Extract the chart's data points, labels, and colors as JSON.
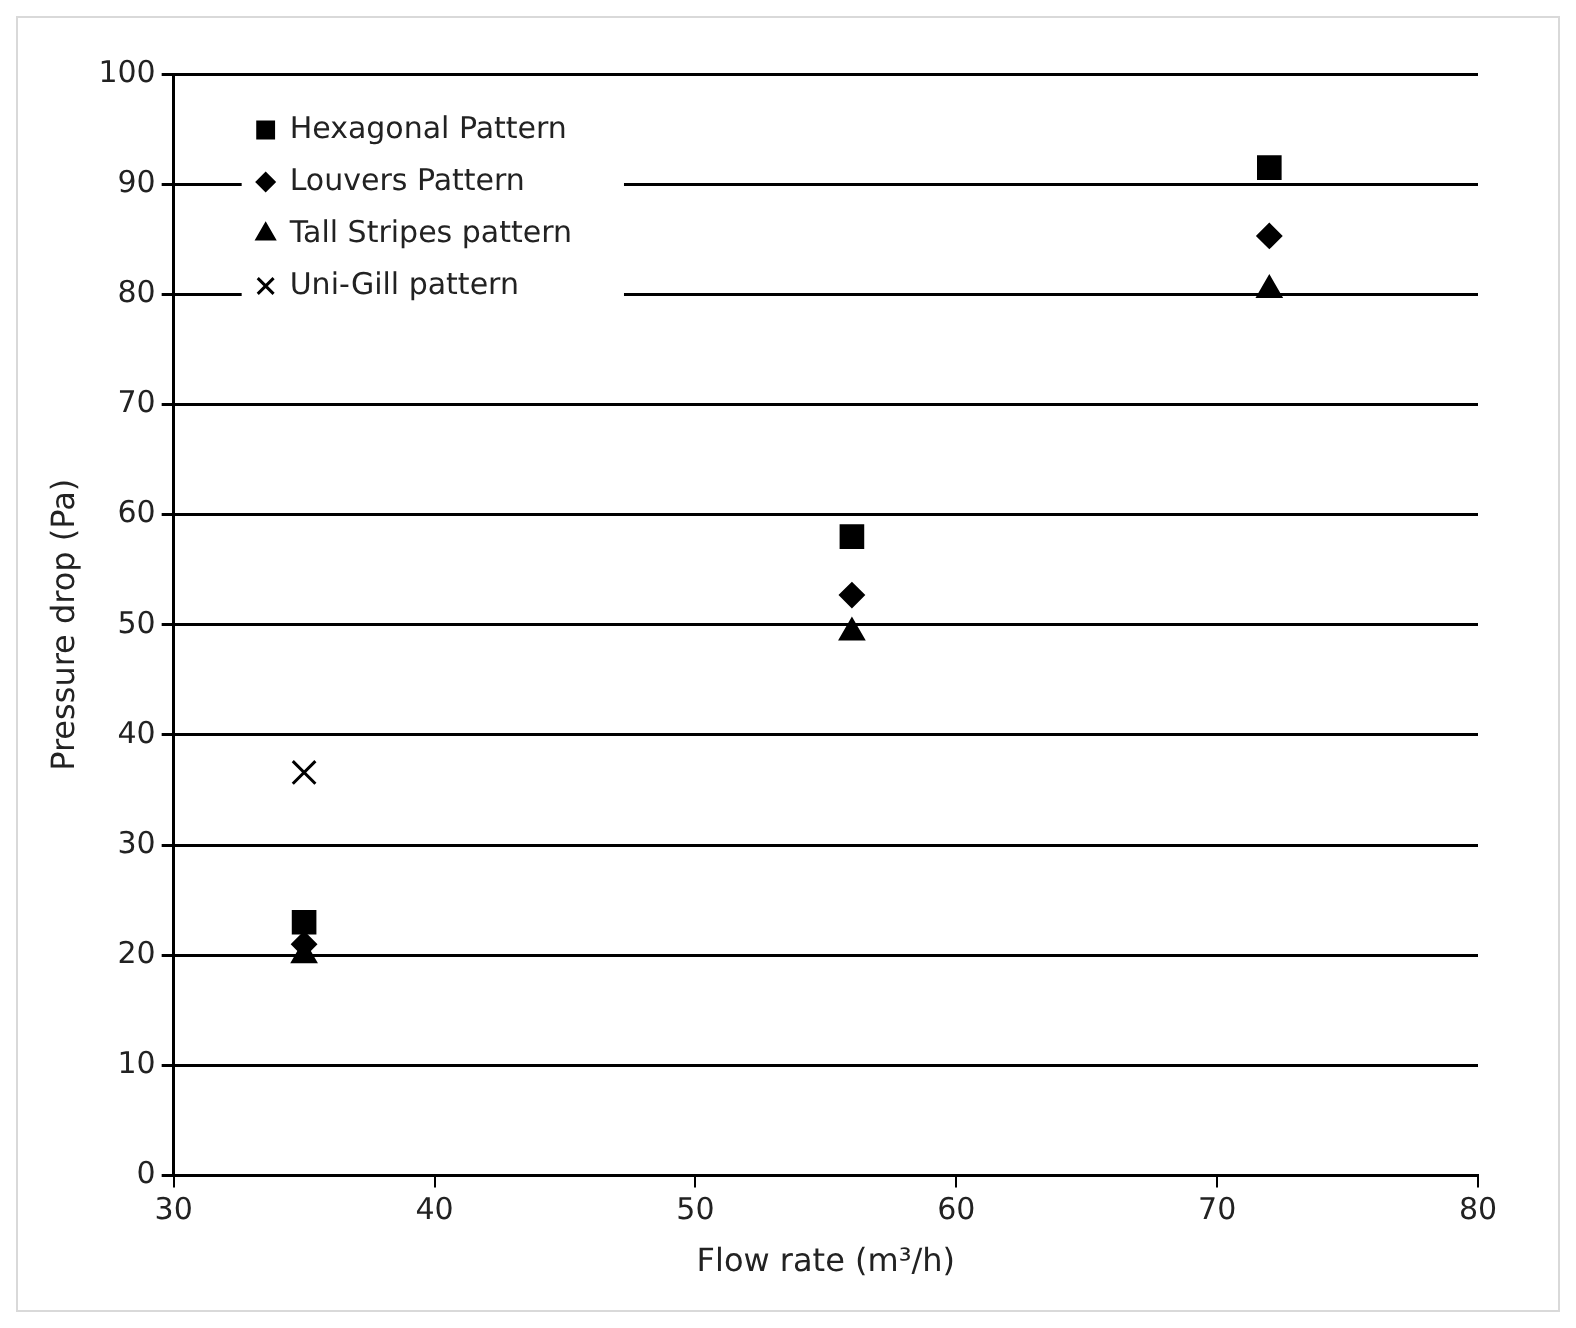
{
  "chart_data": {
    "type": "scatter",
    "xlabel": "Flow rate (m³/h)",
    "ylabel": "Pressure drop (Pa)",
    "xlim": [
      30,
      80
    ],
    "xticks": [
      30,
      40,
      50,
      60,
      70,
      80
    ],
    "ylim": [
      0,
      100
    ],
    "yticks": [
      0,
      10,
      20,
      30,
      40,
      50,
      60,
      70,
      80,
      90,
      100
    ],
    "grid": "y",
    "legend": "top left",
    "series": [
      {
        "name": "Hexagonal Pattern",
        "color": "#000000",
        "marker": "square",
        "x": [
          35,
          56,
          72
        ],
        "values": [
          23,
          58,
          91.5
        ]
      },
      {
        "name": "Louvers Pattern",
        "color": "#000000",
        "marker": "diamond",
        "x": [
          35,
          56,
          72
        ],
        "values": [
          21,
          52.7,
          85.3
        ]
      },
      {
        "name": "Tall Stripes pattern",
        "color": "#000000",
        "marker": "triangle",
        "x": [
          35,
          56,
          72
        ],
        "values": [
          20,
          49.3,
          80.4
        ]
      },
      {
        "name": "Uni-Gill pattern",
        "color": "#000000",
        "marker": "cross",
        "x": [
          35
        ],
        "values": [
          36.6
        ]
      }
    ]
  }
}
